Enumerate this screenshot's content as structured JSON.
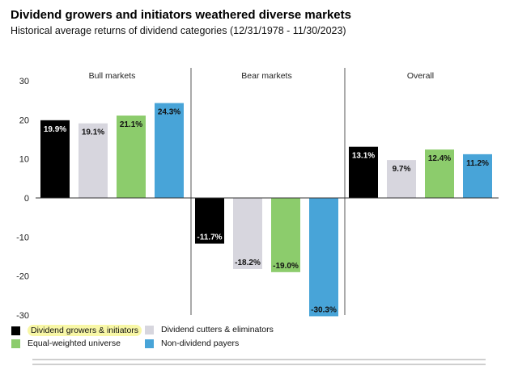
{
  "header": {
    "title": "Dividend growers and initiators weathered diverse markets",
    "subtitle": "Historical average returns of dividend categories (12/31/1978 - 11/30/2023)"
  },
  "legend": {
    "items": [
      {
        "label": "Dividend growers & initiators",
        "color": "#000000",
        "highlighted": true
      },
      {
        "label": "Dividend cutters & eliminators",
        "color": "#d7d6de",
        "highlighted": false
      },
      {
        "label": "Equal-weighted universe",
        "color": "#8ccc6c",
        "highlighted": false
      },
      {
        "label": "Non-dividend payers",
        "color": "#48a4d8",
        "highlighted": false
      }
    ]
  },
  "chart_data": {
    "type": "bar",
    "title": "Dividend growers and initiators weathered diverse markets",
    "subtitle": "Historical average returns of dividend categories (12/31/1978 - 11/30/2023)",
    "ylim": [
      -30,
      30
    ],
    "yticks": [
      30,
      20,
      10,
      0,
      -10,
      -20,
      -30
    ],
    "ytick_labels": [
      "30",
      "20",
      "10",
      "0",
      "-10",
      "-20",
      "-30"
    ],
    "categories": [
      "Bull markets",
      "Bear markets",
      "Overall"
    ],
    "series": [
      {
        "name": "Dividend growers & initiators",
        "color": "#000000",
        "values": [
          19.9,
          -11.7,
          13.1
        ],
        "labels": [
          "19.9%",
          "-11.7%",
          "13.1%"
        ]
      },
      {
        "name": "Dividend cutters & eliminators",
        "color": "#d7d6de",
        "values": [
          19.1,
          -18.2,
          9.7
        ],
        "labels": [
          "19.1%",
          "-18.2%",
          "9.7%"
        ]
      },
      {
        "name": "Equal-weighted universe",
        "color": "#8ccc6c",
        "values": [
          21.1,
          -19.0,
          12.4
        ],
        "labels": [
          "21.1%",
          "-19.0%",
          "12.4%"
        ]
      },
      {
        "name": "Non-dividend payers",
        "color": "#48a4d8",
        "values": [
          24.3,
          -30.3,
          11.2
        ],
        "labels": [
          "24.3%",
          "-30.3%",
          "11.2%"
        ]
      }
    ]
  }
}
